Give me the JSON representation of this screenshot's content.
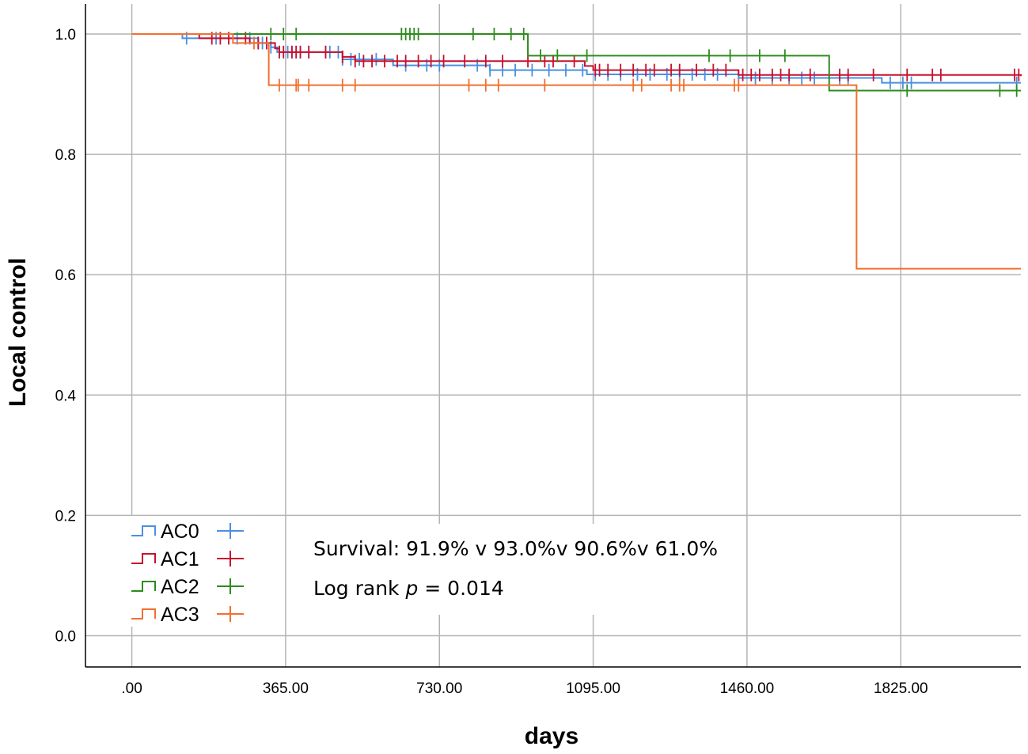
{
  "chart_data": {
    "type": "line",
    "subtype": "kaplan-meier step",
    "xlabel": "days",
    "ylabel": "Local control",
    "xlim": [
      -110,
      2110
    ],
    "ylim": [
      -0.052,
      1.05
    ],
    "xticks": [
      0,
      365,
      730,
      1095,
      1460,
      1825
    ],
    "xtick_labels": [
      ".00",
      "365.00",
      "730.00",
      "1095.00",
      "1460.00",
      "1825.00"
    ],
    "yticks": [
      0.0,
      0.2,
      0.4,
      0.6,
      0.8,
      1.0
    ],
    "ytick_labels": [
      "0.0",
      "0.2",
      "0.4",
      "0.6",
      "0.8",
      "1.0"
    ],
    "grid": true,
    "legend_position": "bottom-left",
    "annotations": {
      "survival": "Survival: 91.9% v 93.0%v 90.6%v 61.0%",
      "logrank_prefix": "Log rank ",
      "logrank_p": "p",
      "logrank_suffix": " = 0.014"
    },
    "series": [
      {
        "name": "AC0",
        "color": "#4a90e2",
        "steps": [
          [
            0,
            1.0
          ],
          [
            120,
            0.993
          ],
          [
            300,
            0.985
          ],
          [
            330,
            0.978
          ],
          [
            345,
            0.97
          ],
          [
            500,
            0.958
          ],
          [
            620,
            0.948
          ],
          [
            850,
            0.94
          ],
          [
            1080,
            0.933
          ],
          [
            1440,
            0.927
          ],
          [
            1780,
            0.919
          ],
          [
            2110,
            0.919
          ]
        ],
        "censors": [
          130,
          200,
          250,
          280,
          300,
          310,
          330,
          350,
          370,
          380,
          390,
          400,
          420,
          460,
          470,
          490,
          500,
          520,
          540,
          580,
          650,
          700,
          730,
          820,
          850,
          880,
          910,
          950,
          990,
          1030,
          1070,
          1100,
          1130,
          1160,
          1200,
          1230,
          1270,
          1300,
          1330,
          1360,
          1390,
          1440,
          1480,
          1520,
          1560,
          1590,
          1620,
          1680,
          1700,
          1800,
          1830,
          1850,
          2100
        ]
      },
      {
        "name": "AC1",
        "color": "#c8102e",
        "steps": [
          [
            0,
            1.0
          ],
          [
            160,
            0.993
          ],
          [
            280,
            0.985
          ],
          [
            340,
            0.976
          ],
          [
            350,
            0.97
          ],
          [
            500,
            0.962
          ],
          [
            530,
            0.955
          ],
          [
            1075,
            0.947
          ],
          [
            1095,
            0.94
          ],
          [
            1440,
            0.932
          ],
          [
            2110,
            0.93
          ]
        ],
        "censors": [
          190,
          210,
          230,
          270,
          300,
          320,
          350,
          360,
          380,
          390,
          400,
          420,
          460,
          500,
          530,
          550,
          570,
          600,
          630,
          650,
          680,
          710,
          740,
          790,
          840,
          880,
          940,
          980,
          1000,
          1050,
          1100,
          1110,
          1130,
          1160,
          1190,
          1220,
          1240,
          1280,
          1300,
          1340,
          1380,
          1410,
          1450,
          1470,
          1490,
          1520,
          1540,
          1560,
          1610,
          1680,
          1700,
          1760,
          1840,
          1900,
          1920,
          2095,
          2105
        ]
      },
      {
        "name": "AC2",
        "color": "#2e8b1e",
        "steps": [
          [
            0,
            1.0
          ],
          [
            940,
            0.964
          ],
          [
            1655,
            0.906
          ],
          [
            2110,
            0.906
          ]
        ],
        "censors": [
          330,
          360,
          390,
          640,
          650,
          660,
          670,
          680,
          810,
          860,
          900,
          930,
          970,
          1010,
          1080,
          1370,
          1420,
          1490,
          1550,
          1840,
          2060,
          2100
        ]
      },
      {
        "name": "AC3",
        "color": "#f07030",
        "steps": [
          [
            0,
            1.0
          ],
          [
            240,
            0.985
          ],
          [
            325,
            0.915
          ],
          [
            1720,
            0.61
          ],
          [
            2110,
            0.61
          ]
        ],
        "censors": [
          290,
          350,
          390,
          395,
          420,
          500,
          530,
          800,
          840,
          870,
          980,
          1190,
          1210,
          1280,
          1300,
          1310,
          1430,
          1440
        ]
      }
    ]
  }
}
